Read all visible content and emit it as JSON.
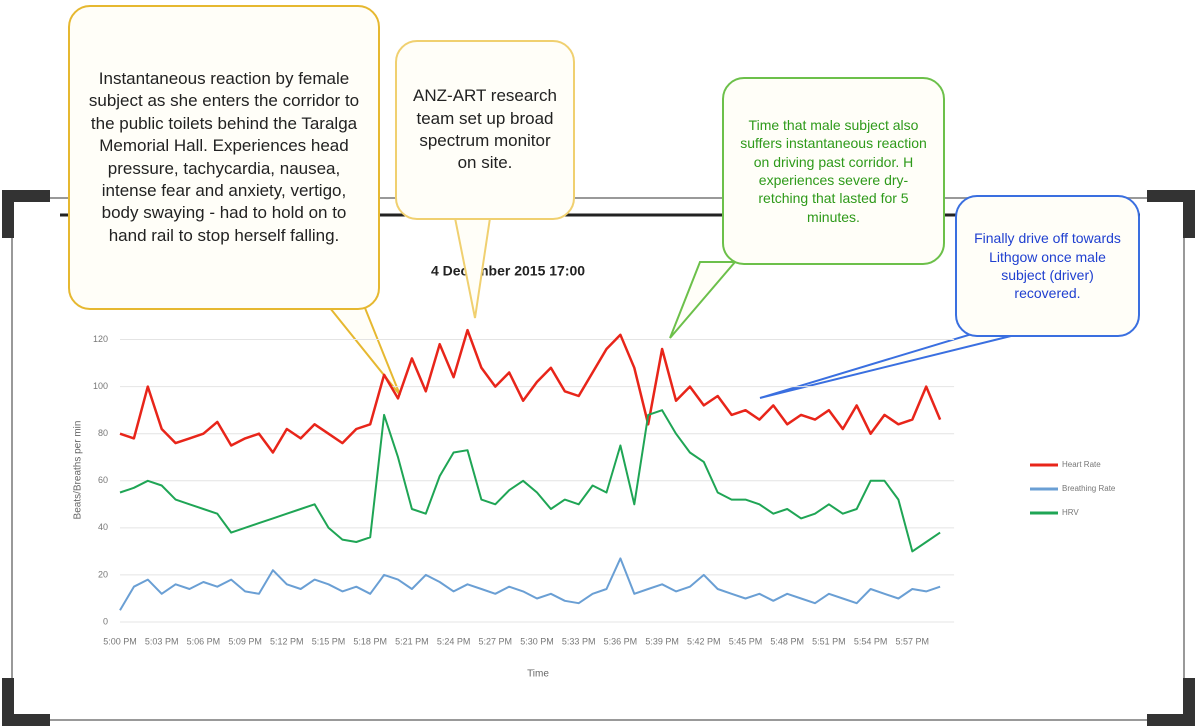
{
  "chart_data": {
    "type": "line",
    "title": "4 December 2015 17:00",
    "x_label": "Time",
    "y_label": "Beats/Breaths per min",
    "categories": [
      "5:00 PM",
      null,
      null,
      "5:03 PM",
      null,
      null,
      "5:06 PM",
      null,
      null,
      "5:09 PM",
      null,
      null,
      "5:12 PM",
      null,
      null,
      "5:15 PM",
      null,
      null,
      "5:18 PM",
      null,
      null,
      "5:21 PM",
      null,
      null,
      "5:24 PM",
      null,
      null,
      "5:27 PM",
      null,
      null,
      "5:30 PM",
      null,
      null,
      "5:33 PM",
      null,
      null,
      "5:36 PM",
      null,
      null,
      "5:39 PM",
      null,
      null,
      "5:42 PM",
      null,
      null,
      "5:45 PM",
      null,
      null,
      "5:48 PM",
      null,
      null,
      "5:51 PM",
      null,
      null,
      "5:54 PM",
      null,
      null,
      "5:57 PM",
      null,
      null
    ],
    "series": [
      {
        "name": "Heart Rate",
        "color": "#e8251a",
        "values": [
          80,
          78,
          100,
          82,
          76,
          78,
          80,
          85,
          75,
          78,
          80,
          72,
          82,
          78,
          84,
          80,
          76,
          82,
          84,
          105,
          95,
          112,
          98,
          118,
          104,
          124,
          108,
          100,
          106,
          94,
          102,
          108,
          98,
          96,
          106,
          116,
          122,
          108,
          84,
          116,
          94,
          100,
          92,
          96,
          88,
          90,
          86,
          92,
          84,
          88,
          86,
          90,
          82,
          92,
          80,
          88,
          84,
          86,
          100,
          86
        ]
      },
      {
        "name": "Breathing Rate",
        "color": "#6a9fd4",
        "values": [
          5,
          15,
          18,
          12,
          16,
          14,
          17,
          15,
          18,
          13,
          12,
          22,
          16,
          14,
          18,
          16,
          13,
          15,
          12,
          20,
          18,
          14,
          20,
          17,
          13,
          16,
          14,
          12,
          15,
          13,
          10,
          12,
          9,
          8,
          12,
          14,
          27,
          12,
          14,
          16,
          13,
          15,
          20,
          14,
          12,
          10,
          12,
          9,
          12,
          10,
          8,
          12,
          10,
          8,
          14,
          12,
          10,
          14,
          13,
          15
        ]
      },
      {
        "name": "HRV",
        "color": "#1fa555",
        "values": [
          55,
          57,
          60,
          58,
          52,
          50,
          48,
          46,
          38,
          40,
          42,
          44,
          46,
          48,
          50,
          40,
          35,
          34,
          36,
          88,
          70,
          48,
          46,
          62,
          72,
          73,
          52,
          50,
          56,
          60,
          55,
          48,
          52,
          50,
          58,
          55,
          75,
          50,
          88,
          90,
          80,
          72,
          68,
          55,
          52,
          52,
          50,
          46,
          48,
          44,
          46,
          50,
          46,
          48,
          60,
          60,
          52,
          30,
          34,
          38
        ]
      }
    ],
    "ylim": [
      0,
      130
    ],
    "yticks": [
      0,
      20,
      40,
      60,
      80,
      100,
      120
    ],
    "grid": true,
    "legend": "right",
    "annotations": [
      {
        "text": "Instantaneous reaction by female subject as she enters the corridor to the public toilets behind the Taralga Memorial Hall. Experiences head pressure, tachycardia, nausea, intense fear and anxiety, vertigo, body swaying - had to hold on to hand rail to stop herself falling.",
        "color": "#222222"
      },
      {
        "text": "ANZ-ART research team set up broad spectrum monitor on site.",
        "color": "#222222"
      },
      {
        "text": "Time that male subject also suffers instantaneous reaction on driving past corridor. H experiences severe dry-retching that lasted for 5 minutes.",
        "color": "#2e9a1a"
      },
      {
        "text": "Finally drive off towards Lithgow once male subject (driver) recovered.",
        "color": "#2040d0"
      }
    ]
  }
}
